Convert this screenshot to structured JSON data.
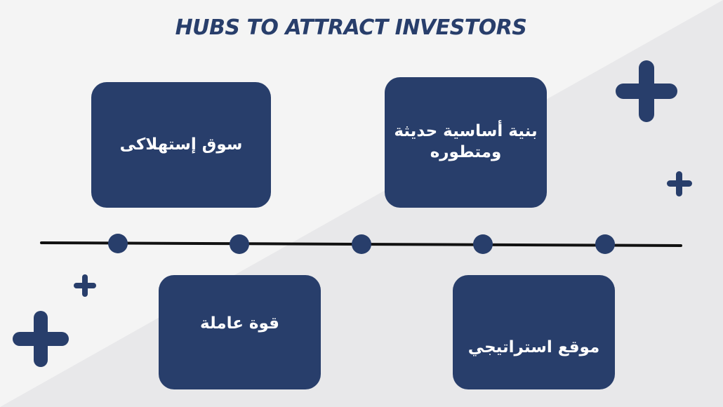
{
  "title": "HUBS TO ATTRACT INVESTORS",
  "colors": {
    "primary": "#283e6b",
    "box_text": "#ffffff",
    "background_light": "#f4f4f4",
    "background_shade": "#e6e6e8",
    "timeline": "#111111"
  },
  "boxes": {
    "consumer_market": "سوق إستهلاكى",
    "infrastructure": "بنية أساسية حديثة ومتطوره",
    "labor_force": "قوة عاملة",
    "strategic_location": "موقع استراتيجي"
  },
  "decorations": {
    "icon": "plus-icon",
    "count": 4
  },
  "timeline": {
    "marker_count": 5
  }
}
